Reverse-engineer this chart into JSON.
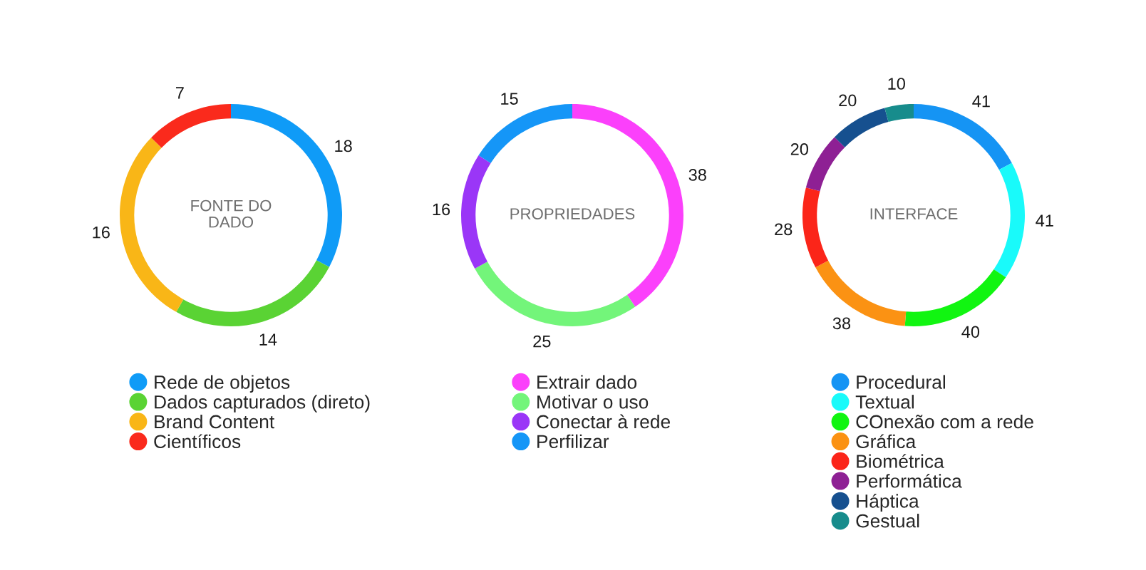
{
  "chart_data": [
    {
      "type": "donut",
      "title": "FONTE DO\nDADO",
      "categories": [
        "Rede de objetos",
        "Dados capturados (direto)",
        "Brand Content",
        "Científicos"
      ],
      "values": [
        18,
        14,
        16,
        7
      ],
      "colors": [
        "#0f9bf7",
        "#5ad334",
        "#f9b617",
        "#fa2a1c"
      ],
      "data_labels": true,
      "legend": "bottom"
    },
    {
      "type": "donut",
      "title": "PROPRIEDADES",
      "categories": [
        "Extrair dado",
        "Motivar o uso",
        "Conectar à rede",
        "Perfilizar"
      ],
      "values": [
        38,
        25,
        16,
        15
      ],
      "colors": [
        "#fb40fb",
        "#73f57a",
        "#9a36f7",
        "#1596f7"
      ],
      "data_labels": true,
      "legend": "bottom"
    },
    {
      "type": "donut",
      "title": "INTERFACE",
      "categories": [
        "Procedural",
        "Textual",
        "COnexão com a rede",
        "Gráfica",
        "Biométrica",
        "Performática",
        "Háptica",
        "Gestual"
      ],
      "values": [
        41,
        41,
        40,
        38,
        28,
        20,
        20,
        10
      ],
      "colors": [
        "#1594f4",
        "#19fafa",
        "#11f511",
        "#fb9213",
        "#fb2519",
        "#8e2094",
        "#16508f",
        "#178c8c"
      ],
      "data_labels": true,
      "legend": "bottom"
    }
  ]
}
